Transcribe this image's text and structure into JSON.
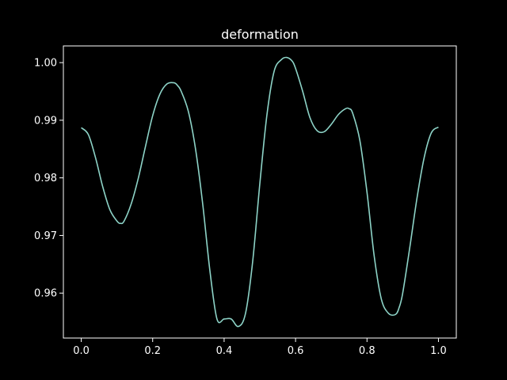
{
  "colors": {
    "background": "#000000",
    "axes": "#ffffff",
    "line": "#8dd3c7"
  },
  "chart_data": {
    "type": "line",
    "title": "deformation",
    "xlabel": "",
    "ylabel": "",
    "xlim": [
      -0.05,
      1.05
    ],
    "ylim": [
      0.9522,
      1.0029
    ],
    "grid": false,
    "legend": "none",
    "x_ticks": [
      0.0,
      0.2,
      0.4,
      0.6,
      0.8,
      1.0
    ],
    "x_tick_labels": [
      "0.0",
      "0.2",
      "0.4",
      "0.6",
      "0.8",
      "1.0"
    ],
    "y_ticks": [
      0.96,
      0.97,
      0.98,
      0.99,
      1.0
    ],
    "y_tick_labels": [
      "0.96",
      "0.97",
      "0.98",
      "0.99",
      "1.00"
    ],
    "series": [
      {
        "x": [
          0.0,
          0.02,
          0.04,
          0.06,
          0.08,
          0.1,
          0.11,
          0.12,
          0.14,
          0.16,
          0.18,
          0.2,
          0.22,
          0.24,
          0.26,
          0.27,
          0.28,
          0.3,
          0.32,
          0.34,
          0.36,
          0.38,
          0.4,
          0.42,
          0.44,
          0.46,
          0.48,
          0.5,
          0.52,
          0.54,
          0.56,
          0.575,
          0.59,
          0.6,
          0.62,
          0.64,
          0.66,
          0.68,
          0.7,
          0.72,
          0.74,
          0.75,
          0.76,
          0.78,
          0.8,
          0.82,
          0.84,
          0.86,
          0.88,
          0.89,
          0.9,
          0.92,
          0.94,
          0.96,
          0.98,
          1.0
        ],
        "y": [
          0.9887,
          0.9875,
          0.9835,
          0.9785,
          0.9745,
          0.9725,
          0.9721,
          0.9725,
          0.9755,
          0.98,
          0.9855,
          0.9908,
          0.9945,
          0.9963,
          0.9965,
          0.996,
          0.995,
          0.9915,
          0.985,
          0.9755,
          0.964,
          0.9555,
          0.9555,
          0.9555,
          0.9542,
          0.9565,
          0.9655,
          0.979,
          0.991,
          0.9985,
          1.0005,
          1.0009,
          1.0003,
          0.999,
          0.995,
          0.9905,
          0.9882,
          0.988,
          0.9893,
          0.991,
          0.992,
          0.992,
          0.9912,
          0.9865,
          0.9775,
          0.9665,
          0.959,
          0.9565,
          0.9563,
          0.9575,
          0.96,
          0.968,
          0.9765,
          0.9835,
          0.9878,
          0.9888
        ]
      }
    ]
  }
}
